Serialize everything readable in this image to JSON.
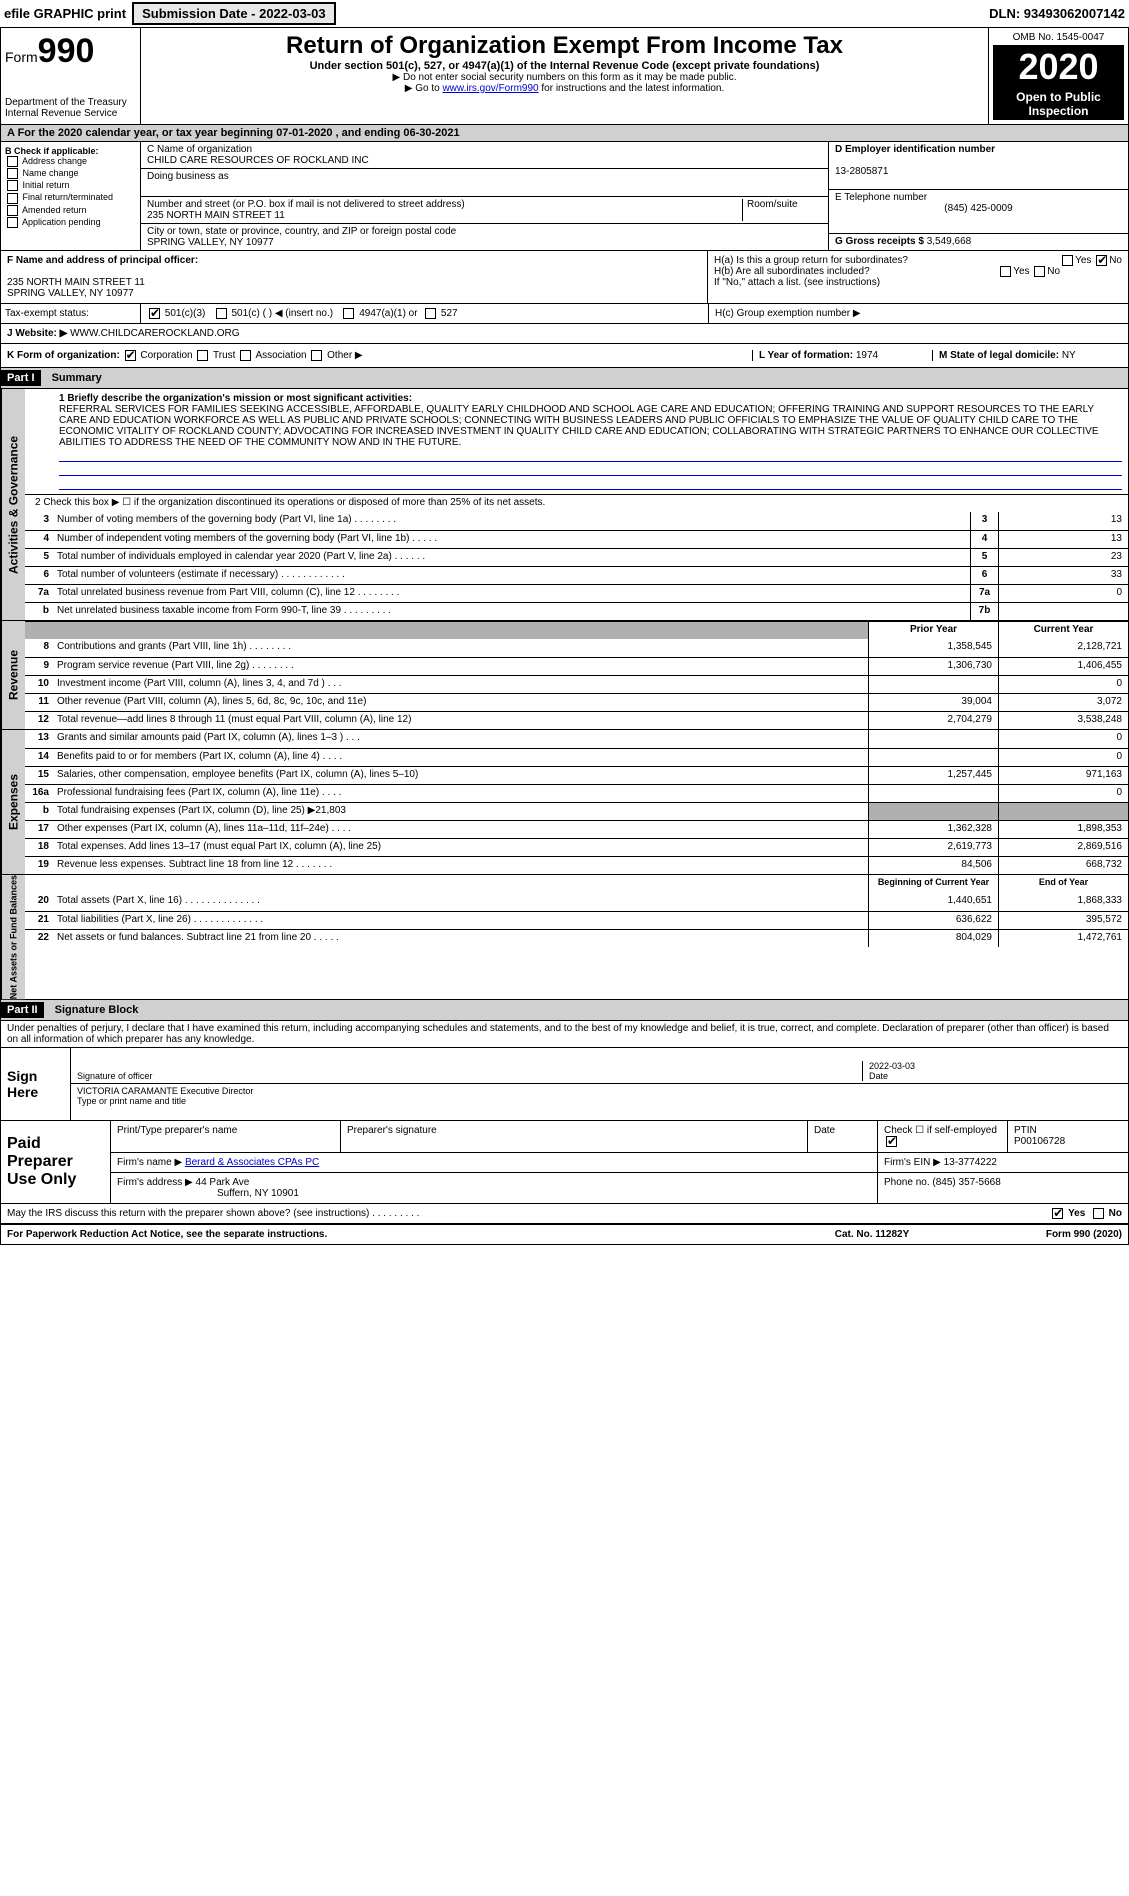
{
  "topbar": {
    "efile": "efile GRAPHIC print",
    "submission_label": "Submission Date - 2022-03-03",
    "dln": "DLN: 93493062007142"
  },
  "header": {
    "form_label": "Form",
    "form_number": "990",
    "dept": "Department of the Treasury\nInternal Revenue Service",
    "title": "Return of Organization Exempt From Income Tax",
    "subtitle": "Under section 501(c), 527, or 4947(a)(1) of the Internal Revenue Code (except private foundations)",
    "note1": "▶ Do not enter social security numbers on this form as it may be made public.",
    "note2": "▶ Go to www.irs.gov/Form990 for instructions and the latest information.",
    "link": "www.irs.gov/Form990",
    "omb": "OMB No. 1545-0047",
    "year": "2020",
    "openpub": "Open to Public Inspection"
  },
  "period": "A For the 2020 calendar year, or tax year beginning 07-01-2020    , and ending 06-30-2021",
  "section_b": {
    "title": "B Check if applicable:",
    "items": [
      "Address change",
      "Name change",
      "Initial return",
      "Final return/terminated",
      "Amended return",
      "Application pending"
    ]
  },
  "section_c": {
    "name_label": "C Name of organization",
    "name": "CHILD CARE RESOURCES OF ROCKLAND INC",
    "dba_label": "Doing business as",
    "addr_label": "Number and street (or P.O. box if mail is not delivered to street address)",
    "room_label": "Room/suite",
    "addr": "235 NORTH MAIN STREET 11",
    "city_label": "City or town, state or province, country, and ZIP or foreign postal code",
    "city": "SPRING VALLEY, NY  10977"
  },
  "section_d": {
    "label": "D Employer identification number",
    "value": "13-2805871"
  },
  "section_e": {
    "label": "E Telephone number",
    "value": "(845) 425-0009"
  },
  "section_g": {
    "label": "G Gross receipts $",
    "value": "3,549,668"
  },
  "section_f": {
    "label": "F  Name and address of principal officer:",
    "addr1": "235 NORTH MAIN STREET 11",
    "addr2": "SPRING VALLEY, NY  10977"
  },
  "section_h": {
    "ha": "H(a)  Is this a group return for subordinates?",
    "hb": "H(b)  Are all subordinates included?",
    "hb_note": "If \"No,\" attach a list. (see instructions)",
    "hc": "H(c)  Group exemption number ▶",
    "yes": "Yes",
    "no": "No"
  },
  "tax_status": {
    "label": "Tax-exempt status:",
    "opt1": "501(c)(3)",
    "opt2": "501(c) (   ) ◀ (insert no.)",
    "opt3": "4947(a)(1) or",
    "opt4": "527"
  },
  "section_j": {
    "label": "J   Website: ▶",
    "value": "WWW.CHILDCAREROCKLAND.ORG"
  },
  "section_k": {
    "label": "K Form of organization:",
    "opts": [
      "Corporation",
      "Trust",
      "Association",
      "Other ▶"
    ]
  },
  "section_l": {
    "label": "L Year of formation:",
    "value": "1974"
  },
  "section_m": {
    "label": "M State of legal domicile:",
    "value": "NY"
  },
  "part1": {
    "header": "Part I",
    "title": "Summary",
    "line1_label": "1   Briefly describe the organization's mission or most significant activities:",
    "mission": "REFERRAL SERVICES FOR FAMILIES SEEKING ACCESSIBLE, AFFORDABLE, QUALITY EARLY CHILDHOOD AND SCHOOL AGE CARE AND EDUCATION; OFFERING TRAINING AND SUPPORT RESOURCES TO THE EARLY CARE AND EDUCATION WORKFORCE AS WELL AS PUBLIC AND PRIVATE SCHOOLS; CONNECTING WITH BUSINESS LEADERS AND PUBLIC OFFICIALS TO EMPHASIZE THE VALUE OF QUALITY CHILD CARE TO THE ECONOMIC VITALITY OF ROCKLAND COUNTY; ADVOCATING FOR INCREASED INVESTMENT IN QUALITY CHILD CARE AND EDUCATION; COLLABORATING WITH STRATEGIC PARTNERS TO ENHANCE OUR COLLECTIVE ABILITIES TO ADDRESS THE NEED OF THE COMMUNITY NOW AND IN THE FUTURE.",
    "line2": "2   Check this box ▶ ☐ if the organization discontinued its operations or disposed of more than 25% of its net assets.",
    "gov_label": "Activities & Governance",
    "rev_label": "Revenue",
    "exp_label": "Expenses",
    "nafb_label": "Net Assets or Fund Balances",
    "lines_gov": [
      {
        "n": "3",
        "label": "Number of voting members of the governing body (Part VI, line 1a)   .    .    .    .    .    .    .    .",
        "cell": "3",
        "val": "13"
      },
      {
        "n": "4",
        "label": "Number of independent voting members of the governing body (Part VI, line 1b)  .    .    .    .    .",
        "cell": "4",
        "val": "13"
      },
      {
        "n": "5",
        "label": "Total number of individuals employed in calendar year 2020 (Part V, line 2a)  .    .    .    .    .    .",
        "cell": "5",
        "val": "23"
      },
      {
        "n": "6",
        "label": "Total number of volunteers (estimate if necessary)  .    .    .    .    .    .    .    .    .    .    .    .",
        "cell": "6",
        "val": "33"
      },
      {
        "n": "7a",
        "label": "Total unrelated business revenue from Part VIII, column (C), line 12   .    .    .    .    .    .    .    .",
        "cell": "7a",
        "val": "0"
      },
      {
        "n": "b",
        "label": "Net unrelated business taxable income from Form 990-T, line 39   .    .    .    .    .    .    .    .    .",
        "cell": "7b",
        "val": ""
      }
    ],
    "col_prior": "Prior Year",
    "col_current": "Current Year",
    "lines_rev": [
      {
        "n": "8",
        "label": "Contributions and grants (Part VIII, line 1h)   .    .    .    .    .    .    .    .",
        "py": "1,358,545",
        "cy": "2,128,721"
      },
      {
        "n": "9",
        "label": "Program service revenue (Part VIII, line 2g)   .    .    .    .    .    .    .    .",
        "py": "1,306,730",
        "cy": "1,406,455"
      },
      {
        "n": "10",
        "label": "Investment income (Part VIII, column (A), lines 3, 4, and 7d )   .    .    .",
        "py": "",
        "cy": "0"
      },
      {
        "n": "11",
        "label": "Other revenue (Part VIII, column (A), lines 5, 6d, 8c, 9c, 10c, and 11e)",
        "py": "39,004",
        "cy": "3,072"
      },
      {
        "n": "12",
        "label": "Total revenue—add lines 8 through 11 (must equal Part VIII, column (A), line 12)",
        "py": "2,704,279",
        "cy": "3,538,248"
      }
    ],
    "lines_exp": [
      {
        "n": "13",
        "label": "Grants and similar amounts paid (Part IX, column (A), lines 1–3 )   .    .    .",
        "py": "",
        "cy": "0"
      },
      {
        "n": "14",
        "label": "Benefits paid to or for members (Part IX, column (A), line 4)   .    .    .    .",
        "py": "",
        "cy": "0"
      },
      {
        "n": "15",
        "label": "Salaries, other compensation, employee benefits (Part IX, column (A), lines 5–10)",
        "py": "1,257,445",
        "cy": "971,163"
      },
      {
        "n": "16a",
        "label": "Professional fundraising fees (Part IX, column (A), line 11e)   .    .    .    .",
        "py": "",
        "cy": "0"
      },
      {
        "n": "b",
        "label": "Total fundraising expenses (Part IX, column (D), line 25) ▶21,803",
        "py": "SHADE",
        "cy": "SHADE"
      },
      {
        "n": "17",
        "label": "Other expenses (Part IX, column (A), lines 11a–11d, 11f–24e)   .    .    .    .",
        "py": "1,362,328",
        "cy": "1,898,353"
      },
      {
        "n": "18",
        "label": "Total expenses. Add lines 13–17 (must equal Part IX, column (A), line 25)",
        "py": "2,619,773",
        "cy": "2,869,516"
      },
      {
        "n": "19",
        "label": "Revenue less expenses. Subtract line 18 from line 12   .    .    .    .    .    .    .",
        "py": "84,506",
        "cy": "668,732"
      }
    ],
    "col_boy": "Beginning of Current Year",
    "col_eoy": "End of Year",
    "lines_nafb": [
      {
        "n": "20",
        "label": "Total assets (Part X, line 16)   .    .    .    .    .    .    .    .    .    .    .    .    .    .",
        "py": "1,440,651",
        "cy": "1,868,333"
      },
      {
        "n": "21",
        "label": "Total liabilities (Part X, line 26)   .    .    .    .    .    .    .    .    .    .    .    .    .",
        "py": "636,622",
        "cy": "395,572"
      },
      {
        "n": "22",
        "label": "Net assets or fund balances. Subtract line 21 from line 20   .    .    .    .    .",
        "py": "804,029",
        "cy": "1,472,761"
      }
    ]
  },
  "part2": {
    "header": "Part II",
    "title": "Signature Block",
    "perjury": "Under penalties of perjury, I declare that I have examined this return, including accompanying schedules and statements, and to the best of my knowledge and belief, it is true, correct, and complete. Declaration of preparer (other than officer) is based on all information of which preparer has any knowledge."
  },
  "sign": {
    "left": "Sign Here",
    "sig_officer": "Signature of officer",
    "date_label": "Date",
    "date": "2022-03-03",
    "name": "VICTORIA CARAMANTE  Executive Director",
    "name_label": "Type or print name and title"
  },
  "prep": {
    "left": "Paid Preparer Use Only",
    "h1": "Print/Type preparer's name",
    "h2": "Preparer's signature",
    "h3": "Date",
    "h4": "Check ☐ if self-employed",
    "h5_label": "PTIN",
    "h5": "P00106728",
    "firm_name_label": "Firm's name    ▶",
    "firm_name": "Berard & Associates CPAs PC",
    "firm_ein_label": "Firm's EIN ▶",
    "firm_ein": "13-3774222",
    "firm_addr_label": "Firm's address ▶",
    "firm_addr": "44 Park Ave",
    "firm_city": "Suffern, NY  10901",
    "phone_label": "Phone no.",
    "phone": "(845) 357-5668"
  },
  "discuss": {
    "q": "May the IRS discuss this return with the preparer shown above? (see instructions)   .    .    .    .    .    .    .    .    .",
    "yes": "Yes",
    "no": "No"
  },
  "footer": {
    "left": "For Paperwork Reduction Act Notice, see the separate instructions.",
    "mid": "Cat. No. 11282Y",
    "right": "Form 990 (2020)"
  }
}
